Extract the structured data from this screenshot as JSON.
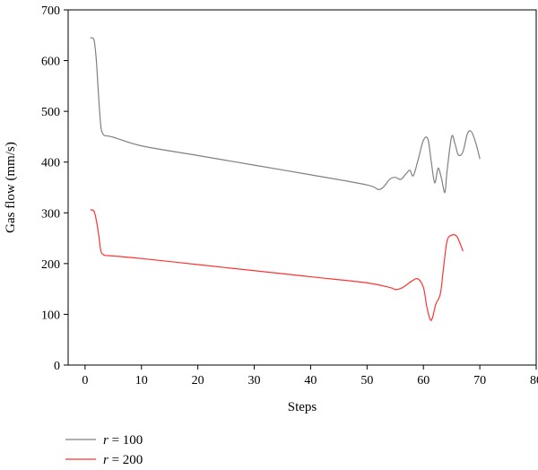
{
  "chart_data": {
    "type": "line",
    "title": "",
    "xlabel": "Steps",
    "ylabel": "Gas flow (mm/s)",
    "xlim": [
      -3,
      80
    ],
    "ylim": [
      0,
      700
    ],
    "xticks": [
      0,
      10,
      20,
      30,
      40,
      50,
      60,
      70,
      80
    ],
    "yticks": [
      0,
      100,
      200,
      300,
      400,
      500,
      600,
      700
    ],
    "grid": false,
    "legend": "bottom-left, below plot",
    "series": [
      {
        "name": "r = 100",
        "var": "r",
        "value_label": "= 100",
        "color": "#808080",
        "x": [
          1,
          1.6,
          2,
          2.4,
          2.8,
          3.2,
          3.6,
          5,
          10,
          20,
          30,
          40,
          50,
          52,
          53,
          54,
          55,
          56,
          57,
          57.6,
          58.2,
          59,
          60,
          60.8,
          61.4,
          62,
          62.6,
          63.2,
          63.8,
          64.2,
          65,
          65.6,
          66.2,
          67,
          67.8,
          68.5,
          69.3,
          70
        ],
        "y": [
          645,
          640,
          600,
          530,
          470,
          455,
          452,
          449,
          432,
          413,
          394,
          375,
          355,
          346,
          352,
          366,
          370,
          366,
          378,
          384,
          373,
          402,
          443,
          445,
          400,
          359,
          388,
          368,
          340,
          383,
          450,
          436,
          414,
          420,
          456,
          460,
          437,
          407
        ]
      },
      {
        "name": "r = 200",
        "var": "r",
        "value_label": "= 200",
        "color": "#ff3333",
        "x": [
          1,
          1.6,
          2,
          2.4,
          2.8,
          3.2,
          3.6,
          5,
          10,
          20,
          30,
          40,
          50,
          54,
          55,
          56,
          57,
          58,
          59,
          60,
          60.6,
          61.2,
          61.6,
          62.2,
          63,
          63.6,
          64.2,
          65,
          65.8,
          66.3,
          67
        ],
        "y": [
          306,
          303,
          285,
          258,
          225,
          218,
          216,
          215,
          210,
          198,
          186,
          174,
          162,
          153,
          149,
          151,
          158,
          166,
          170,
          153,
          115,
          90,
          93,
          120,
          140,
          195,
          245,
          256,
          255,
          245,
          225
        ]
      }
    ]
  }
}
